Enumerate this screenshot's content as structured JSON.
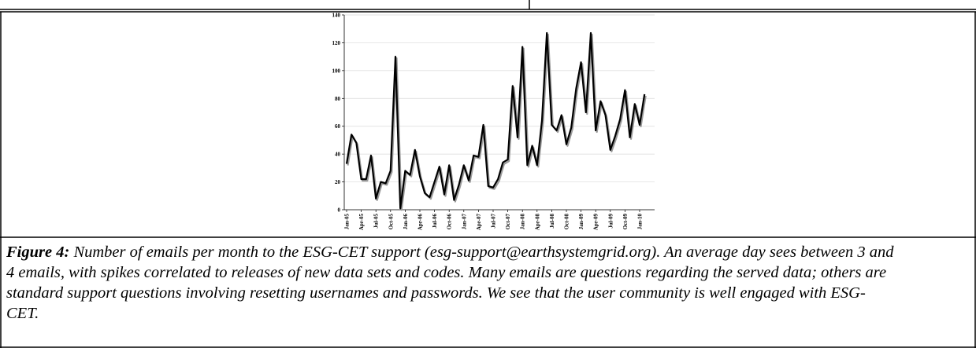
{
  "chart_data": {
    "type": "line",
    "categories": [
      "Jan-05",
      null,
      null,
      "Apr-05",
      null,
      null,
      "Jul-05",
      null,
      null,
      "Oct-05",
      null,
      null,
      "Jan-06",
      null,
      null,
      "Apr-06",
      null,
      null,
      "Jul-06",
      null,
      null,
      "Oct-06",
      null,
      null,
      "Jan-07",
      null,
      null,
      "Apr-07",
      null,
      null,
      "Jul-07",
      null,
      null,
      "Oct-07",
      null,
      null,
      "Jan-08",
      null,
      null,
      "Apr-08",
      null,
      null,
      "Jul-08",
      null,
      null,
      "Oct-08",
      null,
      null,
      "Jan-09",
      null,
      null,
      "Apr-09",
      null,
      null,
      "Jul-09",
      null,
      null,
      "Oct-09",
      null,
      null,
      "Jan-10",
      null
    ],
    "values": [
      33,
      54,
      48,
      22,
      22,
      39,
      8,
      20,
      19,
      28,
      110,
      1,
      28,
      25,
      43,
      24,
      12,
      9,
      20,
      31,
      11,
      32,
      7,
      18,
      32,
      21,
      39,
      38,
      61,
      17,
      16,
      22,
      34,
      36,
      89,
      52,
      117,
      32,
      46,
      32,
      64,
      127,
      61,
      57,
      68,
      47,
      59,
      87,
      106,
      70,
      127,
      57,
      78,
      68,
      43,
      53,
      65,
      86,
      52,
      76,
      61,
      83
    ],
    "color": "#000000",
    "ylim": [
      0,
      140
    ],
    "yticks": [
      0,
      20,
      40,
      60,
      80,
      100,
      120,
      140
    ],
    "grid": true
  },
  "caption": {
    "label": "Figure 4:",
    "text": "Number of emails per month to the ESG-CET support (esg-support@earthsystemgrid.org). An average day sees between 3 and 4 emails, with spikes correlated to releases of new data sets and codes. Many emails are questions regarding the served data; others are standard support questions involving resetting usernames and passwords. We see that the user community is well engaged with ESG-CET."
  }
}
